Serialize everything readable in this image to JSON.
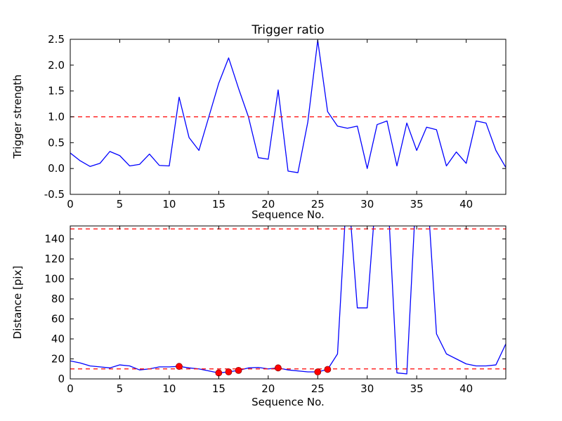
{
  "figure": {
    "background": "#ffffff",
    "line_color": "#0000ff",
    "threshold_color": "#ff0000",
    "marker_color": "#ff0000"
  },
  "chart_data": [
    {
      "type": "line",
      "title": "Trigger ratio",
      "xlabel": "Sequence No.",
      "ylabel": "Trigger strength",
      "xlim": [
        0,
        44
      ],
      "ylim": [
        -0.5,
        2.5
      ],
      "grid": false,
      "legend": null,
      "xticks": [
        0,
        5,
        10,
        15,
        20,
        25,
        30,
        35,
        40
      ],
      "xtick_labels": [
        "0",
        "5",
        "10",
        "15",
        "20",
        "25",
        "30",
        "35",
        "40"
      ],
      "yticks": [
        -0.5,
        0.0,
        0.5,
        1.0,
        1.5,
        2.0,
        2.5
      ],
      "ytick_labels": [
        "-0.5",
        "0.0",
        "0.5",
        "1.0",
        "1.5",
        "2.0",
        "2.5"
      ],
      "line_color": "#0000ff",
      "x": [
        0,
        1,
        2,
        3,
        4,
        5,
        6,
        7,
        8,
        9,
        10,
        11,
        12,
        13,
        14,
        15,
        16,
        17,
        18,
        19,
        20,
        21,
        22,
        23,
        24,
        25,
        26,
        27,
        28,
        29,
        30,
        31,
        32,
        33,
        34,
        35,
        36,
        37,
        38,
        39,
        40,
        41,
        42,
        43,
        44
      ],
      "y": [
        0.3,
        0.15,
        0.04,
        0.1,
        0.33,
        0.25,
        0.05,
        0.08,
        0.28,
        0.06,
        0.05,
        1.38,
        0.6,
        0.35,
        1.0,
        1.65,
        2.14,
        1.55,
        1.0,
        0.21,
        0.18,
        1.52,
        -0.05,
        -0.08,
        0.9,
        2.48,
        1.1,
        0.82,
        0.78,
        0.82,
        0.0,
        0.85,
        0.92,
        0.05,
        0.88,
        0.35,
        0.8,
        0.75,
        0.05,
        0.32,
        0.1,
        0.92,
        0.88,
        0.35,
        0.02
      ],
      "thresholds": [
        {
          "y": 1.0,
          "color": "#ff0000",
          "style": "dashed"
        }
      ]
    },
    {
      "type": "line",
      "title": "",
      "xlabel": "Sequence No.",
      "ylabel": "Distance [pix]",
      "xlim": [
        0,
        44
      ],
      "ylim": [
        0,
        153
      ],
      "grid": false,
      "legend": null,
      "xticks": [
        0,
        5,
        10,
        15,
        20,
        25,
        30,
        35,
        40
      ],
      "xtick_labels": [
        "0",
        "5",
        "10",
        "15",
        "20",
        "25",
        "30",
        "35",
        "40"
      ],
      "yticks": [
        0,
        20,
        40,
        60,
        80,
        100,
        120,
        140
      ],
      "ytick_labels": [
        "0",
        "20",
        "40",
        "60",
        "80",
        "100",
        "120",
        "140"
      ],
      "line_color": "#0000ff",
      "x": [
        0,
        1,
        2,
        3,
        4,
        5,
        6,
        7,
        8,
        9,
        10,
        11,
        12,
        13,
        14,
        15,
        16,
        17,
        18,
        19,
        20,
        21,
        22,
        23,
        24,
        25,
        26,
        27,
        28,
        29,
        30,
        31,
        32,
        33,
        34,
        35,
        36,
        37,
        38,
        39,
        40,
        41,
        42,
        43,
        44
      ],
      "y": [
        18,
        16,
        13,
        12,
        11,
        14,
        13,
        9,
        10,
        12,
        12,
        12.5,
        11,
        10,
        8,
        6,
        7,
        8.5,
        11,
        11.5,
        10,
        11,
        9,
        8,
        7,
        7,
        9.5,
        25,
        200,
        71,
        71,
        200,
        200,
        6,
        5,
        200,
        200,
        45,
        25,
        20,
        15,
        13,
        13,
        14,
        35
      ],
      "thresholds": [
        {
          "y": 150,
          "color": "#ff0000",
          "style": "dashed"
        },
        {
          "y": 10,
          "color": "#ff0000",
          "style": "dashed"
        }
      ],
      "markers": {
        "color": "#ff0000",
        "x": [
          11,
          15,
          16,
          17,
          21,
          25,
          26
        ],
        "y": [
          12.5,
          6,
          7,
          8.5,
          11,
          7,
          9.5
        ]
      }
    }
  ]
}
